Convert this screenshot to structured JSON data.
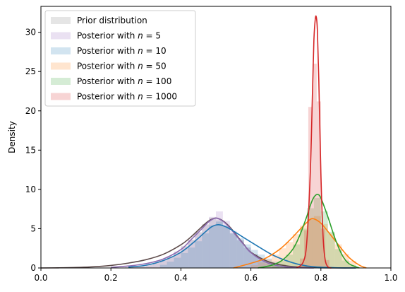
{
  "chart_data": {
    "type": "histogram-kde",
    "xlabel": "",
    "ylabel": "Density",
    "xlim": [
      0.0,
      1.0
    ],
    "ylim": [
      0,
      33.3
    ],
    "grid": false,
    "legend_position": "top-left",
    "x_ticks": [
      {
        "value": 0.0,
        "label": "0.0"
      },
      {
        "value": 0.2,
        "label": "0.2"
      },
      {
        "value": 0.4,
        "label": "0.4"
      },
      {
        "value": 0.6,
        "label": "0.6"
      },
      {
        "value": 0.8,
        "label": "0.8"
      },
      {
        "value": 1.0,
        "label": "1.0"
      }
    ],
    "y_ticks": [
      {
        "value": 0,
        "label": "0"
      },
      {
        "value": 5,
        "label": "5"
      },
      {
        "value": 10,
        "label": "10"
      },
      {
        "value": 15,
        "label": "15"
      },
      {
        "value": 20,
        "label": "20"
      },
      {
        "value": 25,
        "label": "25"
      },
      {
        "value": 30,
        "label": "30"
      }
    ],
    "series": [
      {
        "name": "Prior distribution",
        "color": "#7f7f7f",
        "line_color": "#5d4a4a",
        "hist_bins": [
          {
            "x0": 0.24,
            "x1": 0.26,
            "y": 0.08
          },
          {
            "x0": 0.26,
            "x1": 0.28,
            "y": 0.15
          },
          {
            "x0": 0.28,
            "x1": 0.3,
            "y": 0.25
          },
          {
            "x0": 0.3,
            "x1": 0.32,
            "y": 0.45
          },
          {
            "x0": 0.32,
            "x1": 0.34,
            "y": 0.7
          },
          {
            "x0": 0.34,
            "x1": 0.36,
            "y": 1.0
          },
          {
            "x0": 0.36,
            "x1": 0.38,
            "y": 1.5
          },
          {
            "x0": 0.38,
            "x1": 0.4,
            "y": 2.1
          },
          {
            "x0": 0.4,
            "x1": 0.42,
            "y": 2.8
          },
          {
            "x0": 0.42,
            "x1": 0.44,
            "y": 3.6
          },
          {
            "x0": 0.44,
            "x1": 0.46,
            "y": 4.6
          },
          {
            "x0": 0.46,
            "x1": 0.48,
            "y": 5.6
          },
          {
            "x0": 0.48,
            "x1": 0.5,
            "y": 6.4
          },
          {
            "x0": 0.5,
            "x1": 0.52,
            "y": 6.1
          },
          {
            "x0": 0.52,
            "x1": 0.54,
            "y": 5.4
          },
          {
            "x0": 0.54,
            "x1": 0.56,
            "y": 4.4
          },
          {
            "x0": 0.56,
            "x1": 0.58,
            "y": 3.5
          },
          {
            "x0": 0.58,
            "x1": 0.6,
            "y": 2.6
          },
          {
            "x0": 0.6,
            "x1": 0.62,
            "y": 1.8
          },
          {
            "x0": 0.62,
            "x1": 0.64,
            "y": 1.2
          },
          {
            "x0": 0.64,
            "x1": 0.66,
            "y": 0.75
          },
          {
            "x0": 0.66,
            "x1": 0.68,
            "y": 0.4
          },
          {
            "x0": 0.68,
            "x1": 0.7,
            "y": 0.2
          },
          {
            "x0": 0.7,
            "x1": 0.72,
            "y": 0.08
          }
        ],
        "kde": {
          "x": [
            0.0,
            0.05,
            0.1,
            0.15,
            0.2,
            0.25,
            0.3,
            0.35,
            0.4,
            0.43,
            0.46,
            0.48,
            0.5,
            0.52,
            0.54,
            0.56,
            0.58,
            0.6,
            0.65,
            0.7,
            0.75,
            0.8,
            0.85,
            0.9
          ],
          "y": [
            0.0,
            0.02,
            0.06,
            0.15,
            0.32,
            0.62,
            1.05,
            1.75,
            2.95,
            4.0,
            5.25,
            6.0,
            6.35,
            6.0,
            5.2,
            4.1,
            3.0,
            2.0,
            0.8,
            0.28,
            0.08,
            0.02,
            0.0,
            0.0
          ]
        }
      },
      {
        "name": "Posterior with $n = 5$",
        "color": "#9467bd",
        "line_color": "#8c6bb1",
        "hist_bins": [
          {
            "x0": 0.26,
            "x1": 0.28,
            "y": 0.12
          },
          {
            "x0": 0.28,
            "x1": 0.3,
            "y": 0.2
          },
          {
            "x0": 0.3,
            "x1": 0.32,
            "y": 0.35
          },
          {
            "x0": 0.32,
            "x1": 0.34,
            "y": 0.6
          },
          {
            "x0": 0.34,
            "x1": 0.36,
            "y": 0.95
          },
          {
            "x0": 0.36,
            "x1": 0.38,
            "y": 1.35
          },
          {
            "x0": 0.38,
            "x1": 0.4,
            "y": 1.95
          },
          {
            "x0": 0.4,
            "x1": 0.42,
            "y": 2.65
          },
          {
            "x0": 0.42,
            "x1": 0.44,
            "y": 3.55
          },
          {
            "x0": 0.44,
            "x1": 0.46,
            "y": 4.45
          },
          {
            "x0": 0.46,
            "x1": 0.48,
            "y": 5.5
          },
          {
            "x0": 0.48,
            "x1": 0.5,
            "y": 6.5
          },
          {
            "x0": 0.5,
            "x1": 0.52,
            "y": 7.2
          },
          {
            "x0": 0.52,
            "x1": 0.54,
            "y": 6.0
          },
          {
            "x0": 0.54,
            "x1": 0.56,
            "y": 4.7
          },
          {
            "x0": 0.56,
            "x1": 0.58,
            "y": 3.6
          },
          {
            "x0": 0.58,
            "x1": 0.6,
            "y": 2.6
          },
          {
            "x0": 0.6,
            "x1": 0.62,
            "y": 1.7
          },
          {
            "x0": 0.62,
            "x1": 0.64,
            "y": 1.05
          },
          {
            "x0": 0.64,
            "x1": 0.66,
            "y": 0.55
          },
          {
            "x0": 0.66,
            "x1": 0.68,
            "y": 0.25
          }
        ],
        "kde": {
          "x": [
            0.2,
            0.25,
            0.3,
            0.35,
            0.4,
            0.43,
            0.46,
            0.48,
            0.5,
            0.52,
            0.54,
            0.56,
            0.58,
            0.6,
            0.64,
            0.68,
            0.72,
            0.78
          ],
          "y": [
            0.08,
            0.25,
            0.55,
            1.15,
            2.35,
            3.65,
            5.0,
            5.9,
            6.35,
            5.95,
            5.1,
            4.0,
            2.95,
            1.95,
            0.8,
            0.25,
            0.06,
            0.0
          ]
        }
      },
      {
        "name": "Posterior with $n = 10$",
        "color": "#1f77b4",
        "line_color": "#1f77b4",
        "hist_bins": [
          {
            "x0": 0.34,
            "x1": 0.36,
            "y": 0.4
          },
          {
            "x0": 0.36,
            "x1": 0.38,
            "y": 0.8
          },
          {
            "x0": 0.38,
            "x1": 0.4,
            "y": 1.3
          },
          {
            "x0": 0.4,
            "x1": 0.42,
            "y": 1.9
          },
          {
            "x0": 0.42,
            "x1": 0.44,
            "y": 2.6
          },
          {
            "x0": 0.44,
            "x1": 0.46,
            "y": 3.4
          },
          {
            "x0": 0.46,
            "x1": 0.48,
            "y": 4.4
          },
          {
            "x0": 0.48,
            "x1": 0.5,
            "y": 5.4
          },
          {
            "x0": 0.5,
            "x1": 0.52,
            "y": 5.9
          },
          {
            "x0": 0.52,
            "x1": 0.54,
            "y": 5.3
          },
          {
            "x0": 0.54,
            "x1": 0.56,
            "y": 4.4
          },
          {
            "x0": 0.56,
            "x1": 0.58,
            "y": 3.8
          },
          {
            "x0": 0.58,
            "x1": 0.6,
            "y": 3.0
          },
          {
            "x0": 0.6,
            "x1": 0.62,
            "y": 2.3
          },
          {
            "x0": 0.62,
            "x1": 0.64,
            "y": 1.7
          },
          {
            "x0": 0.64,
            "x1": 0.66,
            "y": 1.2
          },
          {
            "x0": 0.66,
            "x1": 0.68,
            "y": 0.8
          },
          {
            "x0": 0.68,
            "x1": 0.7,
            "y": 0.45
          },
          {
            "x0": 0.7,
            "x1": 0.72,
            "y": 0.25
          }
        ],
        "kde": {
          "x": [
            0.25,
            0.3,
            0.35,
            0.4,
            0.44,
            0.47,
            0.49,
            0.51,
            0.53,
            0.55,
            0.58,
            0.62,
            0.66,
            0.7,
            0.74,
            0.78,
            0.84,
            0.9
          ],
          "y": [
            0.1,
            0.35,
            0.95,
            2.0,
            3.4,
            4.6,
            5.3,
            5.5,
            5.2,
            4.7,
            3.85,
            2.75,
            1.7,
            0.95,
            0.42,
            0.15,
            0.03,
            0.0
          ]
        }
      },
      {
        "name": "Posterior with $n = 50$",
        "color": "#ff7f0e",
        "line_color": "#ff7f0e",
        "hist_bins": [
          {
            "x0": 0.6,
            "x1": 0.62,
            "y": 0.35
          },
          {
            "x0": 0.62,
            "x1": 0.64,
            "y": 0.7
          },
          {
            "x0": 0.64,
            "x1": 0.66,
            "y": 1.1
          },
          {
            "x0": 0.66,
            "x1": 0.68,
            "y": 1.7
          },
          {
            "x0": 0.68,
            "x1": 0.7,
            "y": 2.5
          },
          {
            "x0": 0.7,
            "x1": 0.72,
            "y": 3.3
          },
          {
            "x0": 0.72,
            "x1": 0.74,
            "y": 4.3
          },
          {
            "x0": 0.74,
            "x1": 0.76,
            "y": 5.4
          },
          {
            "x0": 0.76,
            "x1": 0.78,
            "y": 6.2
          },
          {
            "x0": 0.78,
            "x1": 0.8,
            "y": 6.6
          },
          {
            "x0": 0.8,
            "x1": 0.82,
            "y": 5.6
          },
          {
            "x0": 0.82,
            "x1": 0.84,
            "y": 4.4
          },
          {
            "x0": 0.84,
            "x1": 0.86,
            "y": 3.0
          },
          {
            "x0": 0.86,
            "x1": 0.88,
            "y": 1.8
          },
          {
            "x0": 0.88,
            "x1": 0.9,
            "y": 0.9
          }
        ],
        "kde": {
          "x": [
            0.55,
            0.6,
            0.64,
            0.68,
            0.71,
            0.74,
            0.76,
            0.77,
            0.78,
            0.8,
            0.82,
            0.85,
            0.88,
            0.91,
            0.93
          ],
          "y": [
            0.0,
            0.6,
            1.2,
            2.3,
            3.5,
            4.9,
            5.8,
            6.2,
            6.25,
            5.7,
            4.65,
            2.95,
            1.35,
            0.35,
            0.0
          ]
        }
      },
      {
        "name": "Posterior with $n = 100$",
        "color": "#2ca02c",
        "line_color": "#2ca02c",
        "hist_bins": [
          {
            "x0": 0.66,
            "x1": 0.68,
            "y": 0.4
          },
          {
            "x0": 0.68,
            "x1": 0.7,
            "y": 0.9
          },
          {
            "x0": 0.7,
            "x1": 0.72,
            "y": 1.7
          },
          {
            "x0": 0.72,
            "x1": 0.74,
            "y": 3.0
          },
          {
            "x0": 0.74,
            "x1": 0.76,
            "y": 5.0
          },
          {
            "x0": 0.76,
            "x1": 0.78,
            "y": 7.6
          },
          {
            "x0": 0.78,
            "x1": 0.8,
            "y": 8.9
          },
          {
            "x0": 0.8,
            "x1": 0.82,
            "y": 7.2
          },
          {
            "x0": 0.82,
            "x1": 0.84,
            "y": 4.6
          },
          {
            "x0": 0.84,
            "x1": 0.86,
            "y": 2.4
          },
          {
            "x0": 0.86,
            "x1": 0.88,
            "y": 0.95
          },
          {
            "x0": 0.88,
            "x1": 0.9,
            "y": 0.35
          }
        ],
        "kde": {
          "x": [
            0.62,
            0.66,
            0.69,
            0.72,
            0.74,
            0.76,
            0.77,
            0.78,
            0.79,
            0.8,
            0.82,
            0.84,
            0.86,
            0.88,
            0.91
          ],
          "y": [
            0.0,
            0.35,
            1.0,
            2.4,
            4.2,
            6.6,
            8.0,
            9.0,
            9.35,
            8.9,
            6.5,
            3.8,
            1.7,
            0.55,
            0.0
          ]
        }
      },
      {
        "name": "Posterior with $n = 1000$",
        "color": "#d62728",
        "line_color": "#d62728",
        "hist_bins": [
          {
            "x0": 0.74,
            "x1": 0.752,
            "y": 1.2
          },
          {
            "x0": 0.752,
            "x1": 0.764,
            "y": 4.8
          },
          {
            "x0": 0.764,
            "x1": 0.776,
            "y": 20.5
          },
          {
            "x0": 0.776,
            "x1": 0.788,
            "y": 26.0
          },
          {
            "x0": 0.788,
            "x1": 0.8,
            "y": 21.2
          },
          {
            "x0": 0.8,
            "x1": 0.812,
            "y": 5.0
          },
          {
            "x0": 0.812,
            "x1": 0.824,
            "y": 1.0
          }
        ],
        "kde": {
          "x": [
            0.73,
            0.75,
            0.76,
            0.77,
            0.776,
            0.78,
            0.784,
            0.787,
            0.79,
            0.794,
            0.8,
            0.806,
            0.812,
            0.82,
            0.83
          ],
          "y": [
            0.0,
            0.8,
            3.5,
            12.5,
            22.5,
            29.0,
            31.7,
            31.9,
            30.2,
            24.0,
            12.0,
            4.2,
            1.1,
            0.15,
            0.0
          ]
        }
      }
    ]
  }
}
